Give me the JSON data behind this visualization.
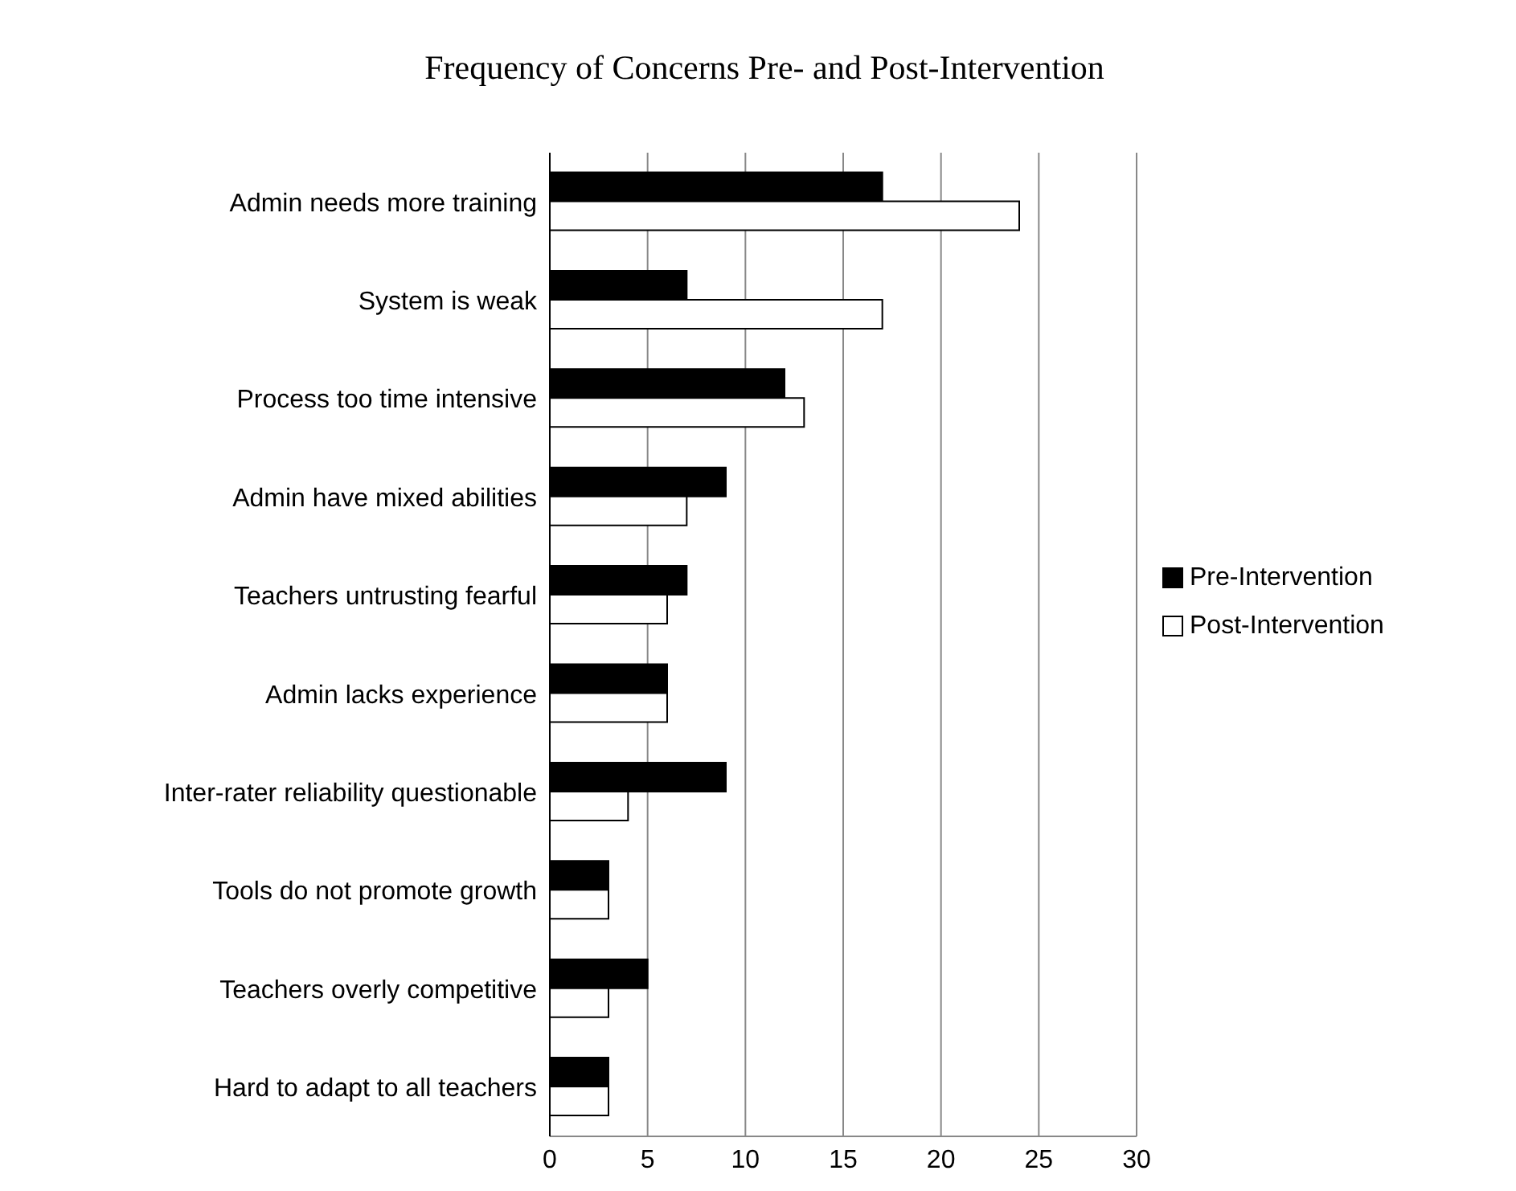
{
  "chart_data": {
    "type": "bar",
    "orientation": "horizontal",
    "title": "Frequency of Concerns Pre- and Post-Intervention",
    "categories": [
      "Admin needs more training",
      "System is weak",
      "Process too time intensive",
      "Admin have mixed abilities",
      "Teachers untrusting fearful",
      "Admin lacks experience",
      "Inter-rater reliability questionable",
      "Tools do not promote growth",
      "Teachers overly competitive",
      "Hard to adapt to all teachers"
    ],
    "series": [
      {
        "name": "Pre-Intervention",
        "color": "#000000",
        "values": [
          17,
          7,
          12,
          9,
          7,
          6,
          9,
          3,
          5,
          3
        ]
      },
      {
        "name": "Post-Intervention",
        "color": "#ffffff",
        "values": [
          24,
          17,
          13,
          7,
          6,
          6,
          4,
          3,
          3,
          3
        ]
      }
    ],
    "xlim": [
      0,
      30
    ],
    "xticks": [
      0,
      5,
      10,
      15,
      20,
      25,
      30
    ],
    "grid": "x",
    "legend": "right"
  }
}
